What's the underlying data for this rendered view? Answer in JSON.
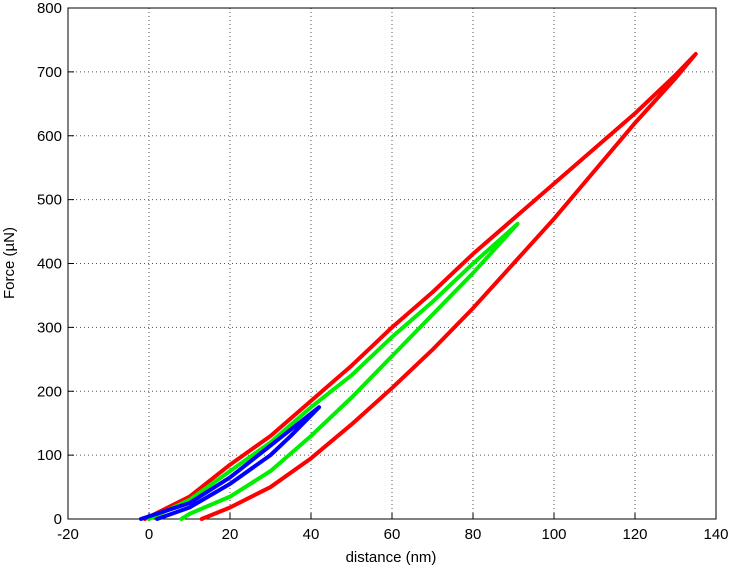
{
  "chart_data": {
    "type": "line",
    "xlabel": "distance (nm)",
    "ylabel": "Force (µN)",
    "xlim": [
      -20,
      140
    ],
    "xticks": [
      -20,
      0,
      20,
      40,
      60,
      80,
      100,
      120,
      140
    ],
    "ylim": [
      0,
      800
    ],
    "yticks": [
      0,
      100,
      200,
      300,
      400,
      500,
      600,
      700,
      800
    ],
    "grid": true,
    "series": [
      {
        "name": "red",
        "color": "#ff0000",
        "x": [
          -1,
          10,
          20,
          30,
          40,
          50,
          60,
          70,
          80,
          90,
          100,
          110,
          120,
          130,
          135,
          130,
          120,
          110,
          100,
          90,
          80,
          70,
          60,
          50,
          40,
          30,
          20,
          13
        ],
        "values": [
          0,
          35,
          85,
          130,
          185,
          240,
          300,
          355,
          415,
          470,
          525,
          580,
          635,
          695,
          728,
          690,
          620,
          545,
          470,
          400,
          330,
          265,
          205,
          148,
          95,
          50,
          18,
          0
        ]
      },
      {
        "name": "green",
        "color": "#00ee00",
        "x": [
          0,
          10,
          20,
          30,
          40,
          50,
          60,
          70,
          80,
          91,
          80,
          70,
          60,
          50,
          40,
          30,
          20,
          10,
          8
        ],
        "values": [
          0,
          30,
          75,
          120,
          175,
          225,
          285,
          340,
          400,
          462,
          385,
          320,
          255,
          190,
          130,
          75,
          35,
          8,
          0
        ]
      },
      {
        "name": "blue",
        "color": "#0000ff",
        "x": [
          -2,
          10,
          20,
          30,
          42,
          35,
          30,
          20,
          10,
          2
        ],
        "values": [
          0,
          25,
          65,
          115,
          175,
          130,
          100,
          55,
          18,
          0
        ]
      }
    ]
  }
}
